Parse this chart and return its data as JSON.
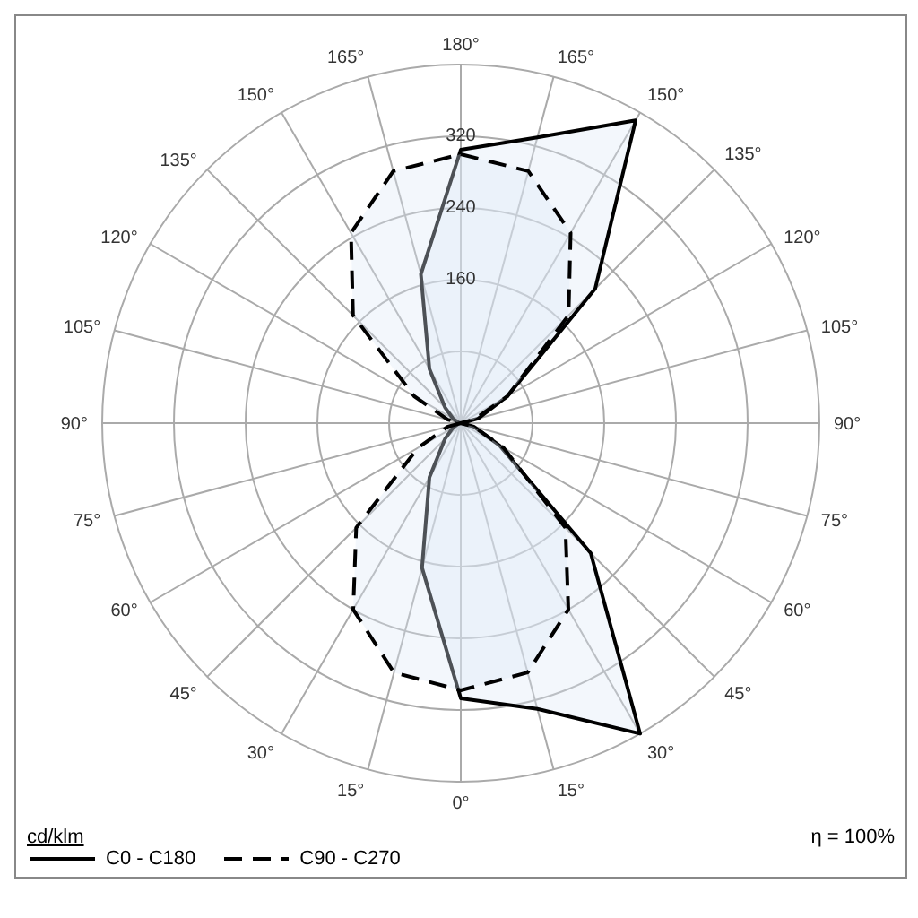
{
  "chart_data": {
    "type": "radar",
    "ylabel": "cd/klm",
    "categories": [
      "180°",
      "165°",
      "150°",
      "135°",
      "120°",
      "105°",
      "90°",
      "75°",
      "60°",
      "45°",
      "30°",
      "15°",
      "0°",
      "15°",
      "30°",
      "45°",
      "60°",
      "75°",
      "90°",
      "105°",
      "120°",
      "135°",
      "150°",
      "165°"
    ],
    "series": [
      {
        "name": "C0 - C180",
        "color": "#000000",
        "line_style": "solid",
        "values": [
          305,
          330,
          390,
          212,
          60,
          20,
          0,
          15,
          50,
          205,
          400,
          330,
          307,
          167,
          70,
          25,
          10,
          3,
          0,
          3,
          10,
          25,
          70,
          172
        ]
      },
      {
        "name": "C90 - C270",
        "color": "#000000",
        "line_style": "dashed",
        "values": [
          300,
          291,
          245,
          170,
          60,
          15,
          0,
          15,
          55,
          165,
          240,
          288,
          298,
          288,
          240,
          165,
          55,
          15,
          0,
          15,
          60,
          170,
          245,
          291
        ]
      }
    ],
    "ylim": [
      0,
      400
    ],
    "yticks": [
      160,
      240,
      320
    ],
    "grid": true,
    "legend": "bottom left",
    "marker": "none",
    "annotations": [
      "η = 100%"
    ]
  }
}
